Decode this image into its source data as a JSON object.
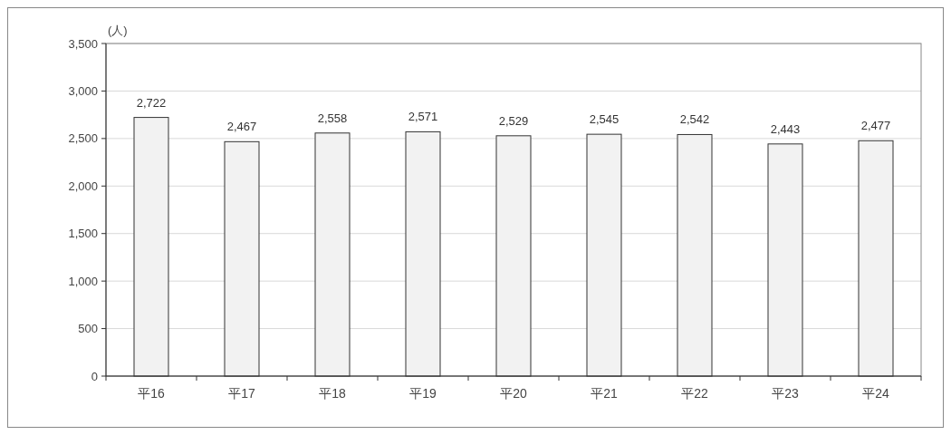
{
  "chart_data": {
    "type": "bar",
    "ylabel": "(人)",
    "categories": [
      "平16",
      "平17",
      "平18",
      "平19",
      "平20",
      "平21",
      "平22",
      "平23",
      "平24"
    ],
    "values": [
      2722,
      2467,
      2558,
      2571,
      2529,
      2545,
      2542,
      2443,
      2477
    ],
    "color": "#f2f2f2",
    "ylim": [
      0,
      3500
    ],
    "yticks": [
      {
        "value": 0,
        "label": "0"
      },
      {
        "value": 500,
        "label": "500"
      },
      {
        "value": 1000,
        "label": "1,000"
      },
      {
        "value": 1500,
        "label": "1,500"
      },
      {
        "value": 2000,
        "label": "2,000"
      },
      {
        "value": 2500,
        "label": "2,500"
      },
      {
        "value": 3000,
        "label": "3,000"
      },
      {
        "value": 3500,
        "label": "3,500"
      }
    ],
    "grid": "y",
    "value_labels": [
      "2,722",
      "2,467",
      "2,558",
      "2,571",
      "2,529",
      "2,545",
      "2,542",
      "2,443",
      "2,477"
    ]
  }
}
